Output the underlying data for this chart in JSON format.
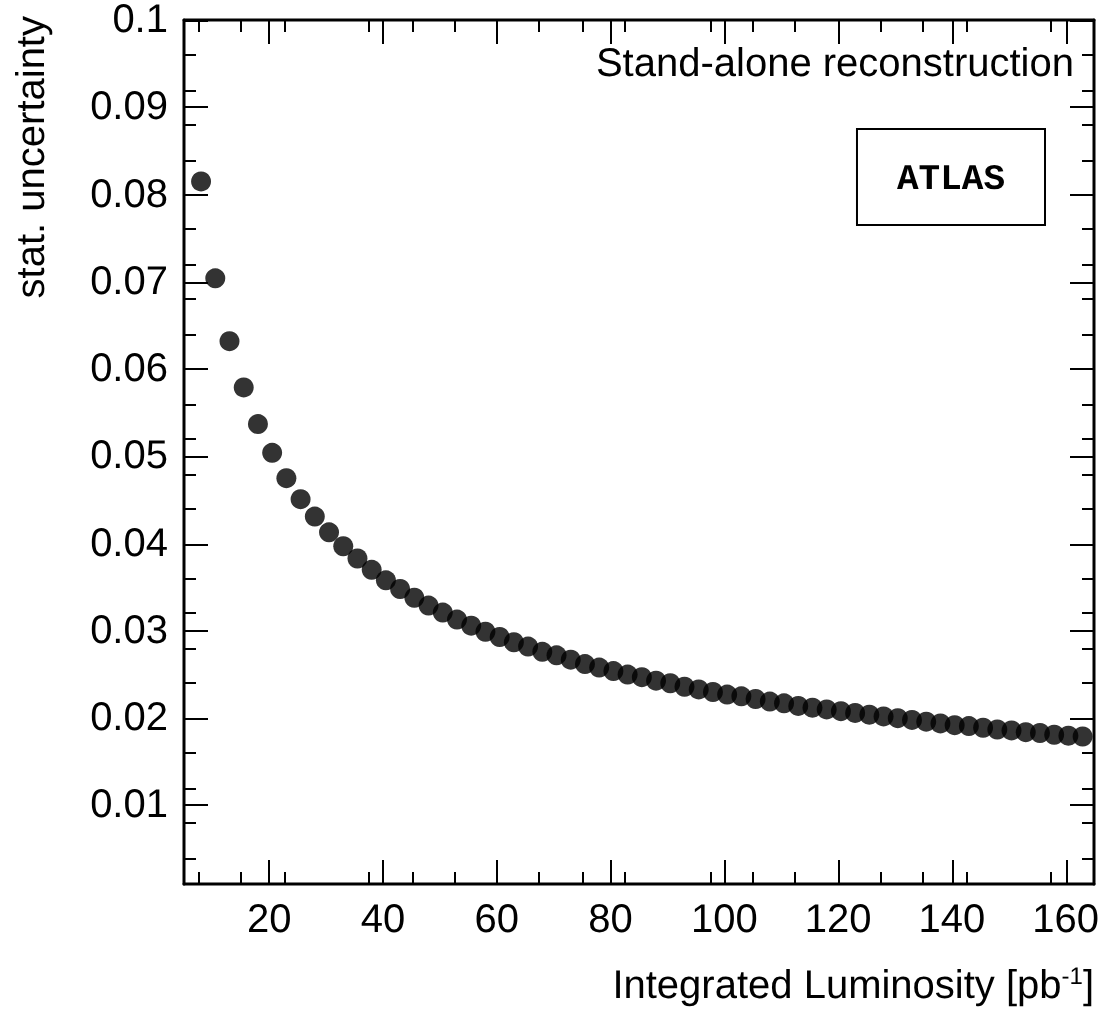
{
  "chart_data": {
    "type": "scatter",
    "xlabel": "Integrated Luminosity [pb$^{-1}$]",
    "ylabel": "stat. uncertainty",
    "annotations": [
      "Stand-alone reconstruction",
      "ATLAS"
    ],
    "x": [
      8,
      10.5,
      13,
      15.5,
      18,
      20.5,
      23,
      25.5,
      28,
      30.5,
      33,
      35.5,
      38,
      40.5,
      43,
      45.5,
      48,
      50.5,
      53,
      55.5,
      58,
      60.5,
      63,
      65.5,
      68,
      70.5,
      73,
      75.5,
      78,
      80.5,
      83,
      85.5,
      88,
      90.5,
      93,
      95.5,
      98,
      100.5,
      103,
      105.5,
      108,
      110.5,
      113,
      115.5,
      118,
      120.5,
      123,
      125.5,
      128,
      130.5,
      133,
      135.5,
      138,
      140.5,
      143,
      145.5,
      148,
      150.5,
      153,
      155.5,
      158,
      160.5,
      163
    ],
    "series": [
      {
        "color": "#000000",
        "values": [
          0.0815,
          0.0704,
          0.0632,
          0.0579,
          0.0537,
          0.0504,
          0.0475,
          0.0451,
          0.0431,
          0.0413,
          0.0397,
          0.0383,
          0.037,
          0.0358,
          0.0348,
          0.0338,
          0.0329,
          0.0321,
          0.0313,
          0.0306,
          0.0299,
          0.0293,
          0.0287,
          0.0282,
          0.0276,
          0.0272,
          0.0267,
          0.0262,
          0.0258,
          0.0254,
          0.025,
          0.0247,
          0.0243,
          0.024,
          0.0236,
          0.0233,
          0.023,
          0.0227,
          0.0225,
          0.0222,
          0.0219,
          0.0217,
          0.0214,
          0.0212,
          0.021,
          0.0208,
          0.0206,
          0.0204,
          0.0202,
          0.02,
          0.0198,
          0.0196,
          0.0194,
          0.0192,
          0.0191,
          0.0189,
          0.0187,
          0.0186,
          0.0184,
          0.0183,
          0.0181,
          0.018,
          0.0179
        ]
      }
    ],
    "xlim": [
      5,
      165
    ],
    "xticks": [
      20,
      40,
      60,
      80,
      100,
      120,
      140,
      160
    ],
    "ylim": [
      0.001,
      0.1
    ],
    "yticks": [
      0.01,
      0.02,
      0.03,
      0.04,
      0.05,
      0.06,
      0.07,
      0.08,
      0.09,
      0.1
    ],
    "marker": "circle",
    "grid": false
  }
}
